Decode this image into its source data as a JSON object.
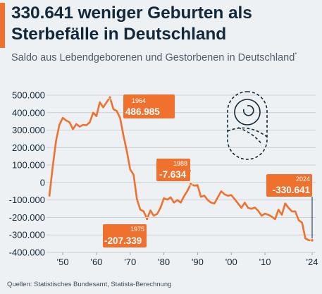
{
  "header": {
    "title": "330.641 weniger Geburten als Sterbefälle in Deutschland",
    "subtitle": "Saldo aus Lebendgeborenen und Gestorbenen in Deutschland",
    "subtitle_footnote": "*"
  },
  "footer": {
    "source": "Quellen: Statistisches Bundesamt, Statista-Berechnung"
  },
  "colors": {
    "accent": "#f0712d",
    "text_dark": "#13283a",
    "grid": "#c9d0d6",
    "background": "#eef1f4"
  },
  "icon": "swaddled-baby-icon",
  "chart_data": {
    "type": "line",
    "title": "330.641 weniger Geburten als Sterbefälle in Deutschland",
    "subtitle": "Saldo aus Lebendgeborenen und Gestorbenen in Deutschland*",
    "xlabel": "",
    "ylabel": "",
    "xlim": [
      1946,
      2024
    ],
    "ylim": [
      -400000,
      500000
    ],
    "grid": "horizontal",
    "y_ticks": [
      500000,
      400000,
      300000,
      200000,
      100000,
      0,
      -100000,
      -200000,
      -300000,
      -400000
    ],
    "y_tick_labels": [
      "500.000",
      "400.000",
      "300.000",
      "200.000",
      "100.000",
      "0",
      "-100.000",
      "-200.000",
      "-300.000",
      "-400.000"
    ],
    "x_ticks": [
      1950,
      1960,
      1970,
      1980,
      1990,
      2000,
      2010,
      2024
    ],
    "x_tick_labels": [
      "'50",
      "'60",
      "'70",
      "'80",
      "'90",
      "'00",
      "'10",
      "'24"
    ],
    "series": [
      {
        "color": "#f0712d",
        "x": [
          1946,
          1947,
          1948,
          1949,
          1950,
          1951,
          1952,
          1953,
          1954,
          1955,
          1956,
          1957,
          1958,
          1959,
          1960,
          1961,
          1962,
          1963,
          1964,
          1965,
          1966,
          1967,
          1968,
          1969,
          1970,
          1971,
          1972,
          1973,
          1974,
          1975,
          1976,
          1977,
          1978,
          1979,
          1980,
          1981,
          1982,
          1983,
          1984,
          1985,
          1986,
          1987,
          1988,
          1989,
          1990,
          1991,
          1992,
          1993,
          1994,
          1995,
          1996,
          1997,
          1998,
          1999,
          2000,
          2001,
          2002,
          2003,
          2004,
          2005,
          2006,
          2007,
          2008,
          2009,
          2010,
          2011,
          2012,
          2013,
          2014,
          2015,
          2016,
          2017,
          2018,
          2019,
          2020,
          2021,
          2022,
          2023,
          2024
        ],
        "y": [
          -80000,
          90000,
          240000,
          330000,
          370000,
          355000,
          345000,
          305000,
          335000,
          320000,
          330000,
          328000,
          345000,
          400000,
          380000,
          460000,
          430000,
          460000,
          486985,
          420000,
          410000,
          370000,
          270000,
          180000,
          75000,
          45000,
          -95000,
          -155000,
          -165000,
          -207339,
          -160000,
          -190000,
          -180000,
          -145000,
          -90000,
          -98000,
          -85000,
          -115000,
          -100000,
          -115000,
          -78000,
          -47000,
          -7634,
          -18000,
          -15000,
          -82000,
          -75000,
          -100000,
          -115000,
          -120000,
          -85000,
          -50000,
          -67000,
          -76000,
          -72000,
          -95000,
          -120000,
          -145000,
          -115000,
          -145000,
          -150000,
          -143000,
          -162000,
          -190000,
          -178000,
          -185000,
          -195000,
          -210000,
          -155000,
          -185000,
          -120000,
          -145000,
          -165000,
          -165000,
          -215000,
          -230000,
          -320000,
          -330000,
          -330641
        ]
      }
    ],
    "annotations": [
      {
        "year": "1964",
        "value": "486.985"
      },
      {
        "year": "1975",
        "value": "-207.339"
      },
      {
        "year": "1988",
        "value": "-7.634"
      },
      {
        "year": "2024",
        "value": "-330.641"
      }
    ]
  }
}
